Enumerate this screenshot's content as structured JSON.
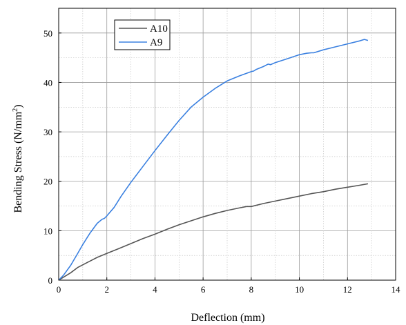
{
  "chart_data": {
    "type": "line",
    "title": "",
    "xlabel": "Deflection (mm)",
    "ylabel_main": "Bending Stress (N/mm",
    "ylabel_sup": "2",
    "ylabel_end": ")",
    "xlim": [
      0,
      14
    ],
    "ylim": [
      0,
      55
    ],
    "xticks": [
      0,
      2,
      4,
      6,
      8,
      10,
      12,
      14
    ],
    "yticks": [
      0,
      10,
      20,
      30,
      40,
      50
    ],
    "grid": true,
    "legend_position": "top-left",
    "series": [
      {
        "name": "A10",
        "color": "#555555",
        "points": [
          [
            0,
            0
          ],
          [
            0.2,
            0.6
          ],
          [
            0.5,
            1.5
          ],
          [
            0.8,
            2.6
          ],
          [
            1.2,
            3.6
          ],
          [
            1.6,
            4.6
          ],
          [
            2.0,
            5.4
          ],
          [
            2.5,
            6.4
          ],
          [
            3.0,
            7.4
          ],
          [
            3.5,
            8.4
          ],
          [
            4.0,
            9.3
          ],
          [
            4.5,
            10.3
          ],
          [
            5.0,
            11.2
          ],
          [
            5.5,
            12.0
          ],
          [
            6.0,
            12.8
          ],
          [
            6.5,
            13.5
          ],
          [
            7.0,
            14.1
          ],
          [
            7.5,
            14.6
          ],
          [
            7.8,
            14.9
          ],
          [
            8.0,
            14.9
          ],
          [
            8.5,
            15.5
          ],
          [
            9.0,
            16.0
          ],
          [
            9.5,
            16.5
          ],
          [
            10.0,
            17.0
          ],
          [
            10.5,
            17.5
          ],
          [
            11.0,
            17.9
          ],
          [
            11.5,
            18.4
          ],
          [
            12.0,
            18.8
          ],
          [
            12.5,
            19.2
          ],
          [
            12.85,
            19.5
          ]
        ]
      },
      {
        "name": "A9",
        "color": "#3a80e0",
        "points": [
          [
            0,
            0
          ],
          [
            0.2,
            1.0
          ],
          [
            0.5,
            3.0
          ],
          [
            0.8,
            5.5
          ],
          [
            1.0,
            7.2
          ],
          [
            1.3,
            9.5
          ],
          [
            1.6,
            11.5
          ],
          [
            1.8,
            12.3
          ],
          [
            1.9,
            12.5
          ],
          [
            2.0,
            13.0
          ],
          [
            2.3,
            14.7
          ],
          [
            2.6,
            17.0
          ],
          [
            3.0,
            19.8
          ],
          [
            3.5,
            23.0
          ],
          [
            4.0,
            26.2
          ],
          [
            4.5,
            29.3
          ],
          [
            5.0,
            32.3
          ],
          [
            5.5,
            35.0
          ],
          [
            6.0,
            37.0
          ],
          [
            6.5,
            38.8
          ],
          [
            7.0,
            40.3
          ],
          [
            7.5,
            41.3
          ],
          [
            8.0,
            42.2
          ],
          [
            8.1,
            42.3
          ],
          [
            8.2,
            42.6
          ],
          [
            8.5,
            43.2
          ],
          [
            8.7,
            43.7
          ],
          [
            8.8,
            43.6
          ],
          [
            9.0,
            44.0
          ],
          [
            9.5,
            44.8
          ],
          [
            10.0,
            45.6
          ],
          [
            10.3,
            45.9
          ],
          [
            10.5,
            46.0
          ],
          [
            10.6,
            46.0
          ],
          [
            11.0,
            46.6
          ],
          [
            11.5,
            47.2
          ],
          [
            12.0,
            47.8
          ],
          [
            12.5,
            48.4
          ],
          [
            12.7,
            48.7
          ],
          [
            12.85,
            48.5
          ]
        ]
      }
    ]
  }
}
